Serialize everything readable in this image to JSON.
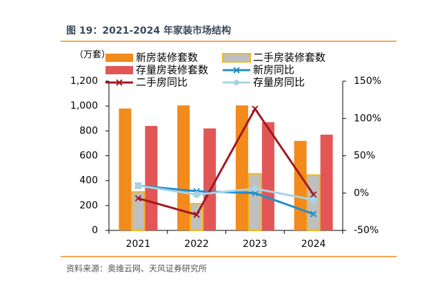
{
  "chart_data": {
    "type": "bar",
    "title": "图 19：2021-2024 年家装市场结构",
    "unit_label": "（万套）",
    "source": "资料来源：奥维云网、天风证券研究所",
    "categories": [
      "2021",
      "2022",
      "2023",
      "2024"
    ],
    "series": [
      {
        "name": "新房装修套数",
        "color": "#f28a1c",
        "values": [
          980,
          1005,
          1005,
          720
        ]
      },
      {
        "name": "二手房装修套数",
        "color": "#bfbfbf",
        "border_color": "#f2b81c",
        "values": [
          310,
          215,
          455,
          445
        ]
      },
      {
        "name": "存量房装修套数",
        "color": "#e35656",
        "values": [
          840,
          820,
          870,
          770
        ]
      },
      {
        "name": "新房同比",
        "color": "#1f8fc9",
        "type": "line",
        "marker": "x",
        "axis": "y2",
        "values": [
          10,
          2.5,
          0,
          -28
        ]
      },
      {
        "name": "二手房同比",
        "color": "#a01820",
        "type": "line",
        "marker": "x",
        "axis": "y2",
        "values": [
          -7,
          -29,
          113,
          -2
        ]
      },
      {
        "name": "存量房同比",
        "color": "#a9d3e6",
        "type": "line",
        "marker": "circle",
        "axis": "y2",
        "values": [
          10,
          -2,
          6,
          -9
        ]
      }
    ],
    "ylim": [
      0,
      1200
    ],
    "yticks": [
      0,
      200,
      400,
      600,
      800,
      {
        "value": 1000,
        "label": "1,000"
      },
      {
        "value": 1200,
        "label": "1,200"
      }
    ],
    "y2lim": [
      -50,
      150
    ],
    "y2ticks": [
      {
        "value": -50,
        "label": "-50%"
      },
      {
        "value": 0,
        "label": "0%"
      },
      {
        "value": 50,
        "label": "50%"
      },
      {
        "value": 100,
        "label": "100%"
      },
      {
        "value": 150,
        "label": "150%"
      }
    ]
  }
}
